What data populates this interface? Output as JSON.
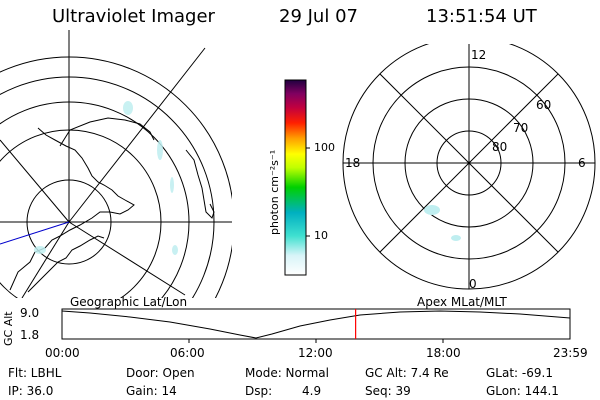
{
  "header": {
    "title": "Ultraviolet Imager",
    "date": "29 Jul 07",
    "time": "13:51:54 UT"
  },
  "left_panel": {
    "label": "Geographic Lat/Lon"
  },
  "right_panel": {
    "label": "Apex MLat/MLT",
    "mlt_labels": {
      "top": "12",
      "right": "6",
      "bottom": "0",
      "left": "18"
    },
    "lat_labels": [
      "60",
      "70",
      "80"
    ]
  },
  "colorbar": {
    "unit_label": "photon cm⁻²s⁻¹",
    "ticks": [
      "100",
      "10"
    ]
  },
  "altitude_plot": {
    "ylabel": "GC Alt",
    "yticks": [
      "9.0",
      "1.8"
    ],
    "xticks": [
      "00:00",
      "06:00",
      "12:00",
      "18:00",
      "23:59"
    ],
    "current_time_fraction": 0.578
  },
  "status": {
    "flt": "Flt: LBHL",
    "ip": "IP: 36.0",
    "door": "Door: Open",
    "gain": "Gain: 14",
    "mode": "Mode: Normal",
    "dsp_label": "Dsp:",
    "dsp_value": "4.9",
    "gc_alt": "GC Alt: 7.4 Re",
    "seq": "Seq: 39",
    "glat": "GLat: -69.1",
    "glon": "GLon: 144.1"
  },
  "colors": {
    "red_marker": "#ff0000",
    "blue_line": "#0000cc",
    "aurora": "#bfeef0"
  }
}
